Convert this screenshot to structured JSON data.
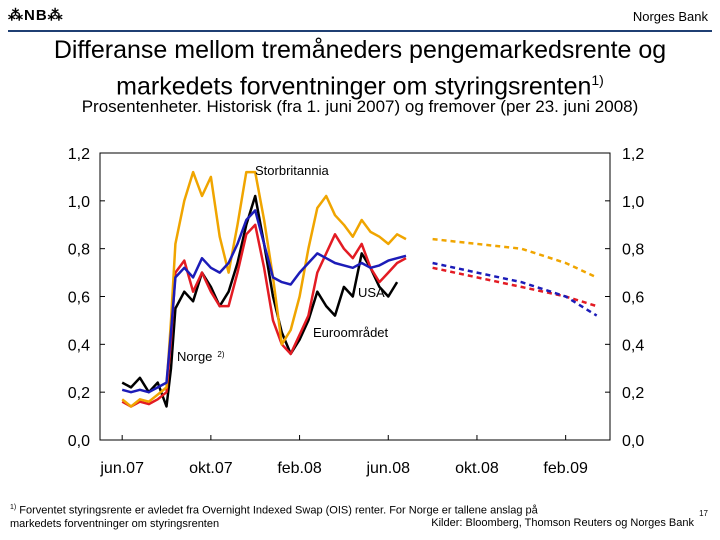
{
  "header": {
    "logo": "⁂NB⁂",
    "bank_name": "Norges Bank"
  },
  "title_main": "Differanse mellom tremåneders pengemarkedsrente og markedets forventninger om styringsrenten",
  "title_sup": "1)",
  "subtitle": "Prosentenheter. Historisk (fra 1. juni 2007) og fremover (per 23. juni 2008)",
  "colors": {
    "norge": "#000000",
    "usa": "#e31b23",
    "storbritannia": "#f0a500",
    "euroomradet": "#1c1cb8",
    "rule": "#1f3f73"
  },
  "chart_data": {
    "type": "line",
    "x_ticks": [
      "jun.07",
      "okt.07",
      "feb.08",
      "jun.08",
      "okt.08",
      "feb.09"
    ],
    "x_tick_months": [
      0,
      4,
      8,
      12,
      16,
      20
    ],
    "y_ticks": [
      "0,0",
      "0,2",
      "0,4",
      "0,6",
      "0,8",
      "1,0",
      "1,2"
    ],
    "ylim": [
      0,
      1.2
    ],
    "xlim_months": [
      -1,
      22
    ],
    "historical_end_month": 12.8,
    "grid": false,
    "series": [
      {
        "name": "Norge",
        "name_sup": "2)",
        "historical": [
          [
            0,
            0.24
          ],
          [
            0.4,
            0.22
          ],
          [
            0.8,
            0.26
          ],
          [
            1.2,
            0.2
          ],
          [
            1.6,
            0.24
          ],
          [
            2,
            0.14
          ],
          [
            2.2,
            0.3
          ],
          [
            2.4,
            0.55
          ],
          [
            2.8,
            0.62
          ],
          [
            3.2,
            0.58
          ],
          [
            3.6,
            0.7
          ],
          [
            4,
            0.64
          ],
          [
            4.4,
            0.56
          ],
          [
            4.8,
            0.62
          ],
          [
            5.2,
            0.74
          ],
          [
            5.6,
            0.9
          ],
          [
            6,
            1.02
          ],
          [
            6.4,
            0.82
          ],
          [
            6.8,
            0.6
          ],
          [
            7.2,
            0.45
          ],
          [
            7.6,
            0.36
          ],
          [
            8,
            0.42
          ],
          [
            8.4,
            0.5
          ],
          [
            8.8,
            0.62
          ],
          [
            9.2,
            0.56
          ],
          [
            9.6,
            0.52
          ],
          [
            10,
            0.64
          ],
          [
            10.4,
            0.6
          ],
          [
            10.8,
            0.78
          ],
          [
            11.2,
            0.72
          ],
          [
            11.6,
            0.64
          ],
          [
            12,
            0.6
          ],
          [
            12.4,
            0.66
          ]
        ],
        "forecast": []
      },
      {
        "name": "USA",
        "historical": [
          [
            0,
            0.16
          ],
          [
            0.4,
            0.14
          ],
          [
            0.8,
            0.16
          ],
          [
            1.2,
            0.15
          ],
          [
            1.6,
            0.17
          ],
          [
            2,
            0.2
          ],
          [
            2.2,
            0.42
          ],
          [
            2.4,
            0.7
          ],
          [
            2.8,
            0.75
          ],
          [
            3.2,
            0.62
          ],
          [
            3.6,
            0.7
          ],
          [
            4,
            0.62
          ],
          [
            4.4,
            0.56
          ],
          [
            4.8,
            0.56
          ],
          [
            5.2,
            0.7
          ],
          [
            5.6,
            0.86
          ],
          [
            6,
            0.9
          ],
          [
            6.4,
            0.72
          ],
          [
            6.8,
            0.5
          ],
          [
            7.2,
            0.4
          ],
          [
            7.6,
            0.36
          ],
          [
            8,
            0.44
          ],
          [
            8.4,
            0.52
          ],
          [
            8.8,
            0.7
          ],
          [
            9.2,
            0.78
          ],
          [
            9.6,
            0.86
          ],
          [
            10,
            0.8
          ],
          [
            10.4,
            0.76
          ],
          [
            10.8,
            0.82
          ],
          [
            11.2,
            0.72
          ],
          [
            11.6,
            0.66
          ],
          [
            12,
            0.7
          ],
          [
            12.4,
            0.74
          ],
          [
            12.8,
            0.76
          ]
        ],
        "forecast": [
          [
            14,
            0.72
          ],
          [
            16,
            0.68
          ],
          [
            18,
            0.64
          ],
          [
            20,
            0.6
          ],
          [
            21.4,
            0.56
          ]
        ]
      },
      {
        "name": "Storbritannia",
        "historical": [
          [
            0,
            0.17
          ],
          [
            0.4,
            0.14
          ],
          [
            0.8,
            0.17
          ],
          [
            1.2,
            0.16
          ],
          [
            1.6,
            0.19
          ],
          [
            2,
            0.22
          ],
          [
            2.2,
            0.5
          ],
          [
            2.4,
            0.82
          ],
          [
            2.8,
            1.0
          ],
          [
            3.2,
            1.12
          ],
          [
            3.6,
            1.02
          ],
          [
            4,
            1.1
          ],
          [
            4.4,
            0.85
          ],
          [
            4.8,
            0.7
          ],
          [
            5.2,
            0.9
          ],
          [
            5.6,
            1.12
          ],
          [
            6,
            1.12
          ],
          [
            6.4,
            0.92
          ],
          [
            6.8,
            0.68
          ],
          [
            7.2,
            0.4
          ],
          [
            7.6,
            0.46
          ],
          [
            8,
            0.6
          ],
          [
            8.4,
            0.8
          ],
          [
            8.8,
            0.97
          ],
          [
            9.2,
            1.02
          ],
          [
            9.6,
            0.94
          ],
          [
            10,
            0.9
          ],
          [
            10.4,
            0.85
          ],
          [
            10.8,
            0.92
          ],
          [
            11.2,
            0.87
          ],
          [
            11.6,
            0.85
          ],
          [
            12,
            0.82
          ],
          [
            12.4,
            0.86
          ],
          [
            12.8,
            0.84
          ]
        ],
        "forecast": [
          [
            14,
            0.84
          ],
          [
            16,
            0.82
          ],
          [
            18,
            0.8
          ],
          [
            20,
            0.74
          ],
          [
            21.4,
            0.68
          ]
        ]
      },
      {
        "name": "Euroområdet",
        "historical": [
          [
            0,
            0.21
          ],
          [
            0.4,
            0.2
          ],
          [
            0.8,
            0.21
          ],
          [
            1.2,
            0.2
          ],
          [
            1.6,
            0.22
          ],
          [
            2,
            0.24
          ],
          [
            2.2,
            0.45
          ],
          [
            2.4,
            0.68
          ],
          [
            2.8,
            0.72
          ],
          [
            3.2,
            0.68
          ],
          [
            3.6,
            0.76
          ],
          [
            4,
            0.72
          ],
          [
            4.4,
            0.7
          ],
          [
            4.8,
            0.74
          ],
          [
            5.2,
            0.82
          ],
          [
            5.6,
            0.92
          ],
          [
            6,
            0.96
          ],
          [
            6.4,
            0.82
          ],
          [
            6.8,
            0.68
          ],
          [
            7.2,
            0.66
          ],
          [
            7.6,
            0.65
          ],
          [
            8,
            0.7
          ],
          [
            8.4,
            0.74
          ],
          [
            8.8,
            0.78
          ],
          [
            9.2,
            0.76
          ],
          [
            9.6,
            0.74
          ],
          [
            10,
            0.73
          ],
          [
            10.4,
            0.72
          ],
          [
            10.8,
            0.74
          ],
          [
            11.2,
            0.72
          ],
          [
            11.6,
            0.73
          ],
          [
            12,
            0.75
          ],
          [
            12.4,
            0.76
          ],
          [
            12.8,
            0.77
          ]
        ],
        "forecast": [
          [
            14,
            0.74
          ],
          [
            16,
            0.7
          ],
          [
            18,
            0.66
          ],
          [
            20,
            0.6
          ],
          [
            21.4,
            0.52
          ]
        ]
      }
    ]
  },
  "footnote": {
    "marker": "1)",
    "line1": "Forventet styringsrente er avledet fra Overnight Indexed Swap (OIS) renter. For Norge er tallene anslag på",
    "line2": "markedets forventninger om styringsrenten"
  },
  "source": "Kilder: Bloomberg, Thomson Reuters og Norges Bank",
  "page_number": "17"
}
